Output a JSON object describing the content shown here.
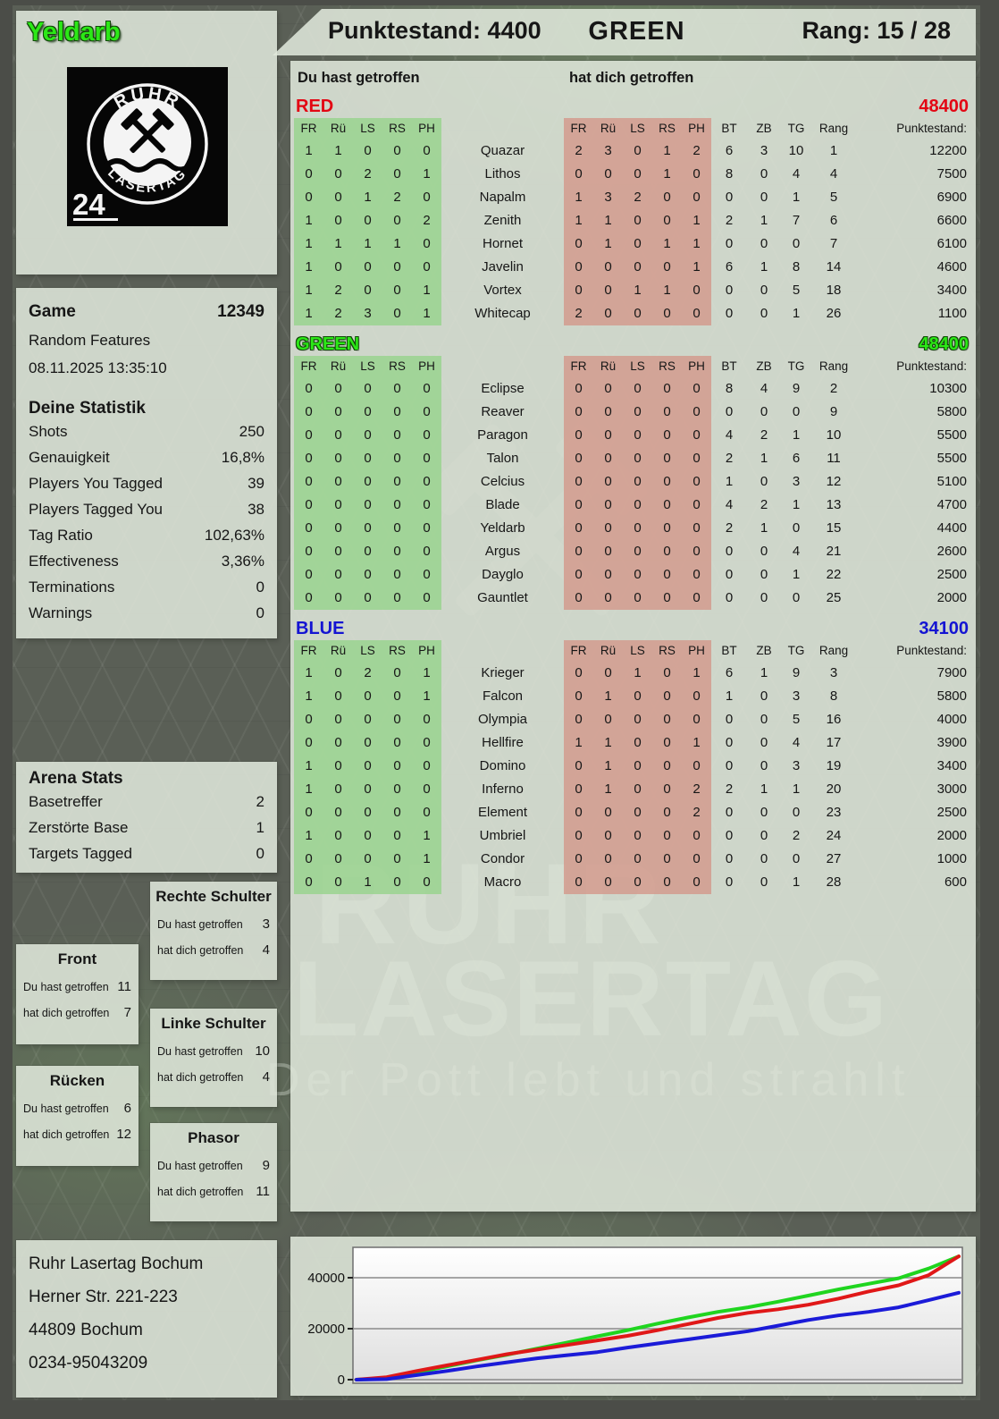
{
  "header": {
    "player_name": "Yeldarb",
    "score_label": "Punktestand:",
    "score_value": "4400",
    "team": "GREEN",
    "rank_label": "Rang: 15 / 28"
  },
  "logo": {
    "top_text": "RUHR",
    "bottom_text": "LASERTAG",
    "badge": "24"
  },
  "game": {
    "label": "Game",
    "id": "12349",
    "mode": "Random Features",
    "datetime": "08.11.2025 13:35:10",
    "stats_title": "Deine Statistik",
    "stats": [
      {
        "label": "Shots",
        "value": "250"
      },
      {
        "label": "Genauigkeit",
        "value": "16,8%"
      },
      {
        "label": "Players You Tagged",
        "value": "39"
      },
      {
        "label": "Players Tagged You",
        "value": "38"
      },
      {
        "label": "Tag Ratio",
        "value": "102,63%"
      },
      {
        "label": "Effectiveness",
        "value": "3,36%"
      },
      {
        "label": "Terminations",
        "value": "0"
      },
      {
        "label": "Warnings",
        "value": "0"
      }
    ]
  },
  "arena": {
    "title": "Arena Stats",
    "stats": [
      {
        "label": "Basetreffer",
        "value": "2"
      },
      {
        "label": "Zerstörte Base",
        "value": "1"
      },
      {
        "label": "Targets Tagged",
        "value": "0"
      }
    ]
  },
  "hit_box_labels": {
    "you": "Du hast getroffen",
    "them": "hat dich getroffen"
  },
  "hit_boxes": [
    {
      "title": "Rechte Schulter",
      "you": "3",
      "them": "4"
    },
    {
      "title": "Front",
      "you": "11",
      "them": "7"
    },
    {
      "title": "Linke Schulter",
      "you": "10",
      "them": "4"
    },
    {
      "title": "Rücken",
      "you": "6",
      "them": "12"
    },
    {
      "title": "Phasor",
      "you": "9",
      "them": "11"
    }
  ],
  "footer": {
    "lines": [
      "Ruhr Lasertag Bochum",
      "Herner Str. 221-223",
      "44809 Bochum",
      "0234-95043209"
    ]
  },
  "watermark": {
    "line1": "RUHR",
    "line2": "LASERTAG",
    "slogan": "Der Pott lebt und strahlt"
  },
  "scoreboard": {
    "you_hit_label": "Du hast getroffen",
    "hit_you_label": "hat dich getroffen",
    "hit_cols": [
      "FR",
      "Rü",
      "LS",
      "RS",
      "PH"
    ],
    "info_cols": [
      "BT",
      "ZB",
      "TG",
      "Rang",
      "Punktestand:"
    ],
    "teams": [
      {
        "name": "RED",
        "color": "#e30613",
        "outlined": false,
        "total": "48400",
        "players": [
          {
            "you": [
              1,
              1,
              0,
              0,
              0
            ],
            "name": "Quazar",
            "them": [
              2,
              3,
              0,
              1,
              2
            ],
            "bt": 6,
            "zb": 3,
            "tg": 10,
            "rang": 1,
            "score": "12200"
          },
          {
            "you": [
              0,
              0,
              2,
              0,
              1
            ],
            "name": "Lithos",
            "them": [
              0,
              0,
              0,
              1,
              0
            ],
            "bt": 8,
            "zb": 0,
            "tg": 4,
            "rang": 4,
            "score": "7500"
          },
          {
            "you": [
              0,
              0,
              1,
              2,
              0
            ],
            "name": "Napalm",
            "them": [
              1,
              3,
              2,
              0,
              0
            ],
            "bt": 0,
            "zb": 0,
            "tg": 1,
            "rang": 5,
            "score": "6900"
          },
          {
            "you": [
              1,
              0,
              0,
              0,
              2
            ],
            "name": "Zenith",
            "them": [
              1,
              1,
              0,
              0,
              1
            ],
            "bt": 2,
            "zb": 1,
            "tg": 7,
            "rang": 6,
            "score": "6600"
          },
          {
            "you": [
              1,
              1,
              1,
              1,
              0
            ],
            "name": "Hornet",
            "them": [
              0,
              1,
              0,
              1,
              1
            ],
            "bt": 0,
            "zb": 0,
            "tg": 0,
            "rang": 7,
            "score": "6100"
          },
          {
            "you": [
              1,
              0,
              0,
              0,
              0
            ],
            "name": "Javelin",
            "them": [
              0,
              0,
              0,
              0,
              1
            ],
            "bt": 6,
            "zb": 1,
            "tg": 8,
            "rang": 14,
            "score": "4600"
          },
          {
            "you": [
              1,
              2,
              0,
              0,
              1
            ],
            "name": "Vortex",
            "them": [
              0,
              0,
              1,
              1,
              0
            ],
            "bt": 0,
            "zb": 0,
            "tg": 5,
            "rang": 18,
            "score": "3400"
          },
          {
            "you": [
              1,
              2,
              3,
              0,
              1
            ],
            "name": "Whitecap",
            "them": [
              2,
              0,
              0,
              0,
              0
            ],
            "bt": 0,
            "zb": 0,
            "tg": 1,
            "rang": 26,
            "score": "1100"
          }
        ]
      },
      {
        "name": "GREEN",
        "color": "#2ce817",
        "outlined": true,
        "total": "48400",
        "players": [
          {
            "you": [
              0,
              0,
              0,
              0,
              0
            ],
            "name": "Eclipse",
            "them": [
              0,
              0,
              0,
              0,
              0
            ],
            "bt": 8,
            "zb": 4,
            "tg": 9,
            "rang": 2,
            "score": "10300"
          },
          {
            "you": [
              0,
              0,
              0,
              0,
              0
            ],
            "name": "Reaver",
            "them": [
              0,
              0,
              0,
              0,
              0
            ],
            "bt": 0,
            "zb": 0,
            "tg": 0,
            "rang": 9,
            "score": "5800"
          },
          {
            "you": [
              0,
              0,
              0,
              0,
              0
            ],
            "name": "Paragon",
            "them": [
              0,
              0,
              0,
              0,
              0
            ],
            "bt": 4,
            "zb": 2,
            "tg": 1,
            "rang": 10,
            "score": "5500"
          },
          {
            "you": [
              0,
              0,
              0,
              0,
              0
            ],
            "name": "Talon",
            "them": [
              0,
              0,
              0,
              0,
              0
            ],
            "bt": 2,
            "zb": 1,
            "tg": 6,
            "rang": 11,
            "score": "5500"
          },
          {
            "you": [
              0,
              0,
              0,
              0,
              0
            ],
            "name": "Celcius",
            "them": [
              0,
              0,
              0,
              0,
              0
            ],
            "bt": 1,
            "zb": 0,
            "tg": 3,
            "rang": 12,
            "score": "5100"
          },
          {
            "you": [
              0,
              0,
              0,
              0,
              0
            ],
            "name": "Blade",
            "them": [
              0,
              0,
              0,
              0,
              0
            ],
            "bt": 4,
            "zb": 2,
            "tg": 1,
            "rang": 13,
            "score": "4700"
          },
          {
            "you": [
              0,
              0,
              0,
              0,
              0
            ],
            "name": "Yeldarb",
            "them": [
              0,
              0,
              0,
              0,
              0
            ],
            "bt": 2,
            "zb": 1,
            "tg": 0,
            "rang": 15,
            "score": "4400"
          },
          {
            "you": [
              0,
              0,
              0,
              0,
              0
            ],
            "name": "Argus",
            "them": [
              0,
              0,
              0,
              0,
              0
            ],
            "bt": 0,
            "zb": 0,
            "tg": 4,
            "rang": 21,
            "score": "2600"
          },
          {
            "you": [
              0,
              0,
              0,
              0,
              0
            ],
            "name": "Dayglo",
            "them": [
              0,
              0,
              0,
              0,
              0
            ],
            "bt": 0,
            "zb": 0,
            "tg": 1,
            "rang": 22,
            "score": "2500"
          },
          {
            "you": [
              0,
              0,
              0,
              0,
              0
            ],
            "name": "Gauntlet",
            "them": [
              0,
              0,
              0,
              0,
              0
            ],
            "bt": 0,
            "zb": 0,
            "tg": 0,
            "rang": 25,
            "score": "2000"
          }
        ]
      },
      {
        "name": "BLUE",
        "color": "#1414d2",
        "outlined": false,
        "total": "34100",
        "players": [
          {
            "you": [
              1,
              0,
              2,
              0,
              1
            ],
            "name": "Krieger",
            "them": [
              0,
              0,
              1,
              0,
              1
            ],
            "bt": 6,
            "zb": 1,
            "tg": 9,
            "rang": 3,
            "score": "7900"
          },
          {
            "you": [
              1,
              0,
              0,
              0,
              1
            ],
            "name": "Falcon",
            "them": [
              0,
              1,
              0,
              0,
              0
            ],
            "bt": 1,
            "zb": 0,
            "tg": 3,
            "rang": 8,
            "score": "5800"
          },
          {
            "you": [
              0,
              0,
              0,
              0,
              0
            ],
            "name": "Olympia",
            "them": [
              0,
              0,
              0,
              0,
              0
            ],
            "bt": 0,
            "zb": 0,
            "tg": 5,
            "rang": 16,
            "score": "4000"
          },
          {
            "you": [
              0,
              0,
              0,
              0,
              0
            ],
            "name": "Hellfire",
            "them": [
              1,
              1,
              0,
              0,
              1
            ],
            "bt": 0,
            "zb": 0,
            "tg": 4,
            "rang": 17,
            "score": "3900"
          },
          {
            "you": [
              1,
              0,
              0,
              0,
              0
            ],
            "name": "Domino",
            "them": [
              0,
              1,
              0,
              0,
              0
            ],
            "bt": 0,
            "zb": 0,
            "tg": 3,
            "rang": 19,
            "score": "3400"
          },
          {
            "you": [
              1,
              0,
              0,
              0,
              0
            ],
            "name": "Inferno",
            "them": [
              0,
              1,
              0,
              0,
              2
            ],
            "bt": 2,
            "zb": 1,
            "tg": 1,
            "rang": 20,
            "score": "3000"
          },
          {
            "you": [
              0,
              0,
              0,
              0,
              0
            ],
            "name": "Element",
            "them": [
              0,
              0,
              0,
              0,
              2
            ],
            "bt": 0,
            "zb": 0,
            "tg": 0,
            "rang": 23,
            "score": "2500"
          },
          {
            "you": [
              1,
              0,
              0,
              0,
              1
            ],
            "name": "Umbriel",
            "them": [
              0,
              0,
              0,
              0,
              0
            ],
            "bt": 0,
            "zb": 0,
            "tg": 2,
            "rang": 24,
            "score": "2000"
          },
          {
            "you": [
              0,
              0,
              0,
              0,
              1
            ],
            "name": "Condor",
            "them": [
              0,
              0,
              0,
              0,
              0
            ],
            "bt": 0,
            "zb": 0,
            "tg": 0,
            "rang": 27,
            "score": "1000"
          },
          {
            "you": [
              0,
              0,
              1,
              0,
              0
            ],
            "name": "Macro",
            "them": [
              0,
              0,
              0,
              0,
              0
            ],
            "bt": 0,
            "zb": 0,
            "tg": 1,
            "rang": 28,
            "score": "600"
          }
        ]
      }
    ]
  },
  "chart_data": {
    "type": "line",
    "title": "",
    "xlabel": "",
    "ylabel": "",
    "x_percent": [
      0,
      5,
      10,
      15,
      20,
      25,
      30,
      35,
      40,
      45,
      50,
      55,
      60,
      65,
      70,
      75,
      80,
      85,
      90,
      95,
      100
    ],
    "ylim": [
      0,
      50000
    ],
    "yticks": [
      0,
      20000,
      40000
    ],
    "grid": "horizontal",
    "legend_position": "none",
    "series": [
      {
        "name": "GREEN",
        "color": "#1fd51f",
        "values": [
          0,
          400,
          2800,
          5200,
          7600,
          9800,
          12200,
          14600,
          17000,
          19400,
          22000,
          24400,
          26600,
          28400,
          30600,
          33000,
          35400,
          37600,
          39800,
          43600,
          48400
        ]
      },
      {
        "name": "RED",
        "color": "#e01818",
        "values": [
          0,
          1000,
          3400,
          5600,
          7800,
          10000,
          11800,
          13600,
          15400,
          17200,
          19400,
          21800,
          24200,
          26200,
          27600,
          29400,
          31800,
          34600,
          37000,
          41000,
          48400
        ]
      },
      {
        "name": "BLUE",
        "color": "#1b1bd8",
        "values": [
          0,
          200,
          1800,
          3400,
          5200,
          6800,
          8400,
          9600,
          10800,
          12600,
          14200,
          15800,
          17400,
          19000,
          21200,
          23400,
          25200,
          26600,
          28400,
          31200,
          34100
        ]
      }
    ]
  }
}
